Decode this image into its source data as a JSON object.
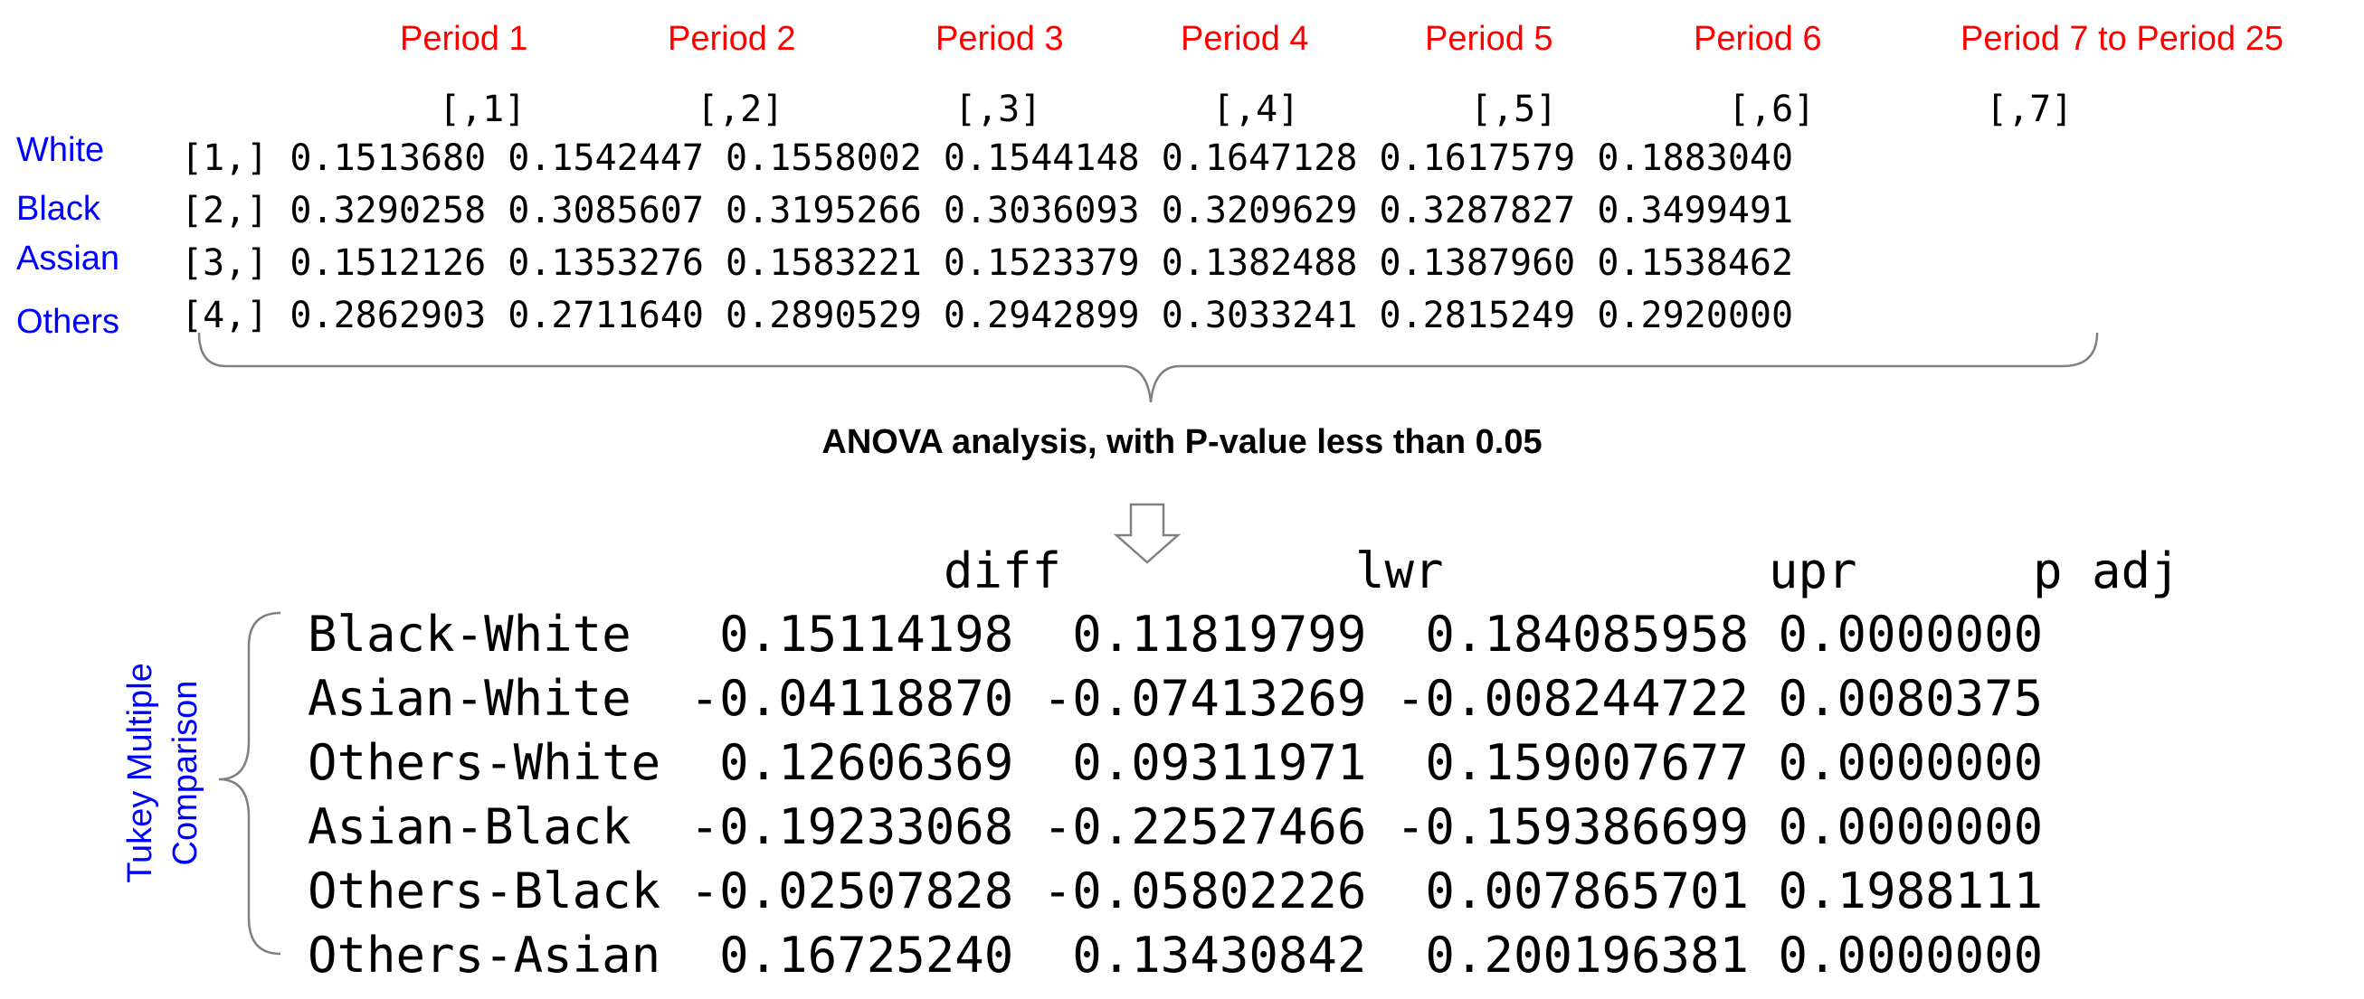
{
  "periods": [
    "Period 1",
    "Period 2",
    "Period 3",
    "Period 4",
    "Period 5",
    "Period 6",
    "Period 7 to Period 25"
  ],
  "column_indices": [
    "[,1]",
    "[,2]",
    "[,3]",
    "[,4]",
    "[,5]",
    "[,6]",
    "[,7]"
  ],
  "groups": [
    "White",
    "Black",
    "Assian",
    "Others"
  ],
  "matrix_rows": [
    "[1,] 0.1513680 0.1542447 0.1558002 0.1544148 0.1647128 0.1617579 0.1883040",
    "[2,] 0.3290258 0.3085607 0.3195266 0.3036093 0.3209629 0.3287827 0.3499491",
    "[3,] 0.1512126 0.1353276 0.1583221 0.1523379 0.1382488 0.1387960 0.1538462",
    "[4,] 0.2862903 0.2711640 0.2890529 0.2942899 0.3033241 0.2815249 0.2920000"
  ],
  "anova_label": "ANOVA analysis, with P-value less than 0.05",
  "tukey_label": "Tukey Multiple Comparison",
  "tukey_header": [
    "diff",
    "lwr",
    "upr",
    "p adj"
  ],
  "tukey_rows": [
    "Black-White   0.15114198  0.11819799  0.184085958 0.0000000",
    "Asian-White  -0.04118870 -0.07413269 -0.008244722 0.0080375",
    "Others-White  0.12606369  0.09311971  0.159007677 0.0000000",
    "Asian-Black  -0.19233068 -0.22527466 -0.159386699 0.0000000",
    "Others-Black -0.02507828 -0.05802226  0.007865701 0.1988111",
    "Others-Asian  0.16725240  0.13430842  0.200196381 0.0000000"
  ]
}
